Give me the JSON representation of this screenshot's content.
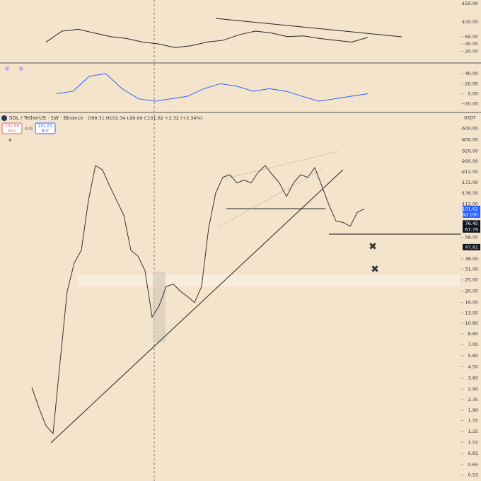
{
  "header": {
    "symbol": "SOL / TetherUS · 1W · Binance",
    "ohlc": "O99.31 H102.34 L99.00 C101.62 +2.32 (+2.34%)",
    "sell_price": "101.60",
    "sell": "SELL",
    "spread": "0.01",
    "buy_price": "101.61",
    "buy": "BUY",
    "currency": "USDT",
    "indicators": "4"
  },
  "chart_data": [
    {
      "type": "line",
      "categories": [
        null,
        null,
        null,
        null,
        null,
        null,
        null,
        null,
        null,
        null,
        null,
        null,
        null,
        null,
        null,
        null,
        null,
        null,
        null,
        null,
        null
      ],
      "values": [
        45,
        75,
        80,
        70,
        60,
        55,
        45,
        40,
        30,
        35,
        45,
        50,
        65,
        75,
        70,
        60,
        62,
        55,
        50,
        45,
        58
      ],
      "color": "#222222",
      "ylim": [
        -10,
        160
      ],
      "yticks": [
        {
          "value": 150,
          "label": "150.00"
        },
        {
          "value": 100,
          "label": "100.00"
        },
        {
          "value": 60,
          "label": "60.00"
        },
        {
          "value": 40,
          "label": "40.00"
        },
        {
          "value": 20,
          "label": "20.00"
        }
      ]
    },
    {
      "type": "line",
      "categories": [
        null,
        null,
        null,
        null,
        null,
        null,
        null,
        null,
        null,
        null,
        null,
        null,
        null,
        null,
        null,
        null,
        null,
        null,
        null,
        null
      ],
      "values": [
        0,
        5,
        35,
        40,
        10,
        -10,
        -15,
        -10,
        -5,
        10,
        20,
        15,
        5,
        10,
        5,
        -5,
        -15,
        -10,
        -5,
        0
      ],
      "color": "#2962ff",
      "ylim": [
        -36,
        60
      ],
      "yticks": [
        {
          "value": 40,
          "label": "40.00"
        },
        {
          "value": 20,
          "label": "20.00"
        },
        {
          "value": 0,
          "label": "0.00"
        },
        {
          "value": -20,
          "label": "-20.00"
        }
      ]
    },
    {
      "type": "line",
      "log_scale": true,
      "categories": [
        null,
        null,
        null,
        null,
        null,
        null,
        null,
        null,
        null,
        null,
        null,
        null,
        null,
        null,
        null,
        null,
        null,
        null,
        null,
        null,
        null,
        null,
        null,
        null,
        null,
        null,
        null,
        null,
        null,
        null,
        null,
        null,
        null,
        null,
        null,
        null,
        null,
        null,
        null,
        null,
        null,
        null,
        null,
        null,
        null,
        null,
        null,
        null
      ],
      "values": [
        3,
        2,
        1.4,
        1.2,
        5,
        20,
        35,
        45,
        120,
        240,
        220,
        160,
        120,
        90,
        45,
        40,
        30,
        12,
        15,
        22,
        23,
        20,
        18,
        16,
        22,
        70,
        140,
        190,
        200,
        170,
        180,
        170,
        210,
        240,
        200,
        170,
        130,
        170,
        200,
        190,
        230,
        160,
        110,
        80,
        78,
        72,
        95,
        101.62
      ],
      "color": "#333333",
      "ylim": [
        0.47,
        675
      ],
      "yticks": [
        {
          "value": 500,
          "label": "500.00"
        },
        {
          "value": 400,
          "label": "400.00"
        },
        {
          "value": 320,
          "label": "320.00"
        },
        {
          "value": 260,
          "label": "260.00"
        },
        {
          "value": 212,
          "label": "212.00"
        },
        {
          "value": 172,
          "label": "172.00"
        },
        {
          "value": 139.5,
          "label": "139.50"
        },
        {
          "value": 112,
          "label": "112.00"
        },
        {
          "value": 58,
          "label": "58.00"
        },
        {
          "value": 38,
          "label": "38.00"
        },
        {
          "value": 31,
          "label": "31.00"
        },
        {
          "value": 25,
          "label": "25.00"
        },
        {
          "value": 20,
          "label": "20.00"
        },
        {
          "value": 16,
          "label": "16.00"
        },
        {
          "value": 13,
          "label": "13.00"
        },
        {
          "value": 10.6,
          "label": "10.60"
        },
        {
          "value": 8.6,
          "label": "8.60"
        },
        {
          "value": 7,
          "label": "7.00"
        },
        {
          "value": 5.6,
          "label": "5.60"
        },
        {
          "value": 4.5,
          "label": "4.50"
        },
        {
          "value": 3.6,
          "label": "3.60"
        },
        {
          "value": 2.9,
          "label": "2.90"
        },
        {
          "value": 2.35,
          "label": "2.35"
        },
        {
          "value": 1.9,
          "label": "1.90"
        },
        {
          "value": 1.55,
          "label": "1.55"
        },
        {
          "value": 1.25,
          "label": "1.25"
        },
        {
          "value": 1.01,
          "label": "1.01"
        },
        {
          "value": 0.81,
          "label": "0.81"
        },
        {
          "value": 0.65,
          "label": "0.65"
        },
        {
          "value": 0.53,
          "label": "0.53"
        }
      ],
      "price_tags": [
        {
          "value": 101.62,
          "label": "101.62",
          "color": "#2962ff"
        },
        {
          "value": 76.45,
          "label": "76.45",
          "color": "#131722"
        },
        {
          "value": 67.79,
          "label": "67.79",
          "color": "#131722"
        },
        {
          "value": 47.81,
          "label": "47.81",
          "color": "#131722"
        }
      ],
      "countdown": "6d 10h"
    }
  ]
}
